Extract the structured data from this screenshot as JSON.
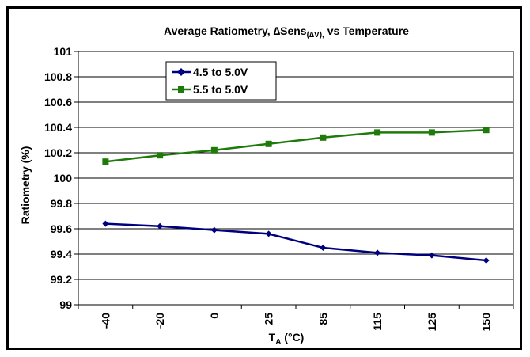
{
  "chart_data": {
    "type": "line",
    "title_prefix": "Average Ratiometry, ",
    "title_symbol": "∆Sens",
    "title_sub": "(∆V),",
    "title_suffix": "  vs Temperature",
    "xlabel_main": "T",
    "xlabel_sub": "A",
    "xlabel_rest": " (°C)",
    "ylabel": "Ratiometry (%)",
    "categories": [
      "-40",
      "-20",
      "0",
      "25",
      "85",
      "115",
      "125",
      "150"
    ],
    "ylim": [
      99,
      101
    ],
    "yticks": [
      "99",
      "99.2",
      "99.4",
      "99.6",
      "99.8",
      "100",
      "100.2",
      "100.4",
      "100.6",
      "100.8",
      "101"
    ],
    "grid": "horizontal",
    "legend_position": "top-left",
    "series": [
      {
        "name": "4.5 to 5.0V",
        "marker": "diamond",
        "color": "#00007f",
        "values": [
          99.64,
          99.62,
          99.59,
          99.56,
          99.45,
          99.41,
          99.39,
          99.35
        ]
      },
      {
        "name": "5.5 to 5.0V",
        "marker": "square",
        "color": "#1e7a0a",
        "values": [
          100.13,
          100.18,
          100.22,
          100.27,
          100.32,
          100.36,
          100.36,
          100.38
        ]
      }
    ]
  }
}
